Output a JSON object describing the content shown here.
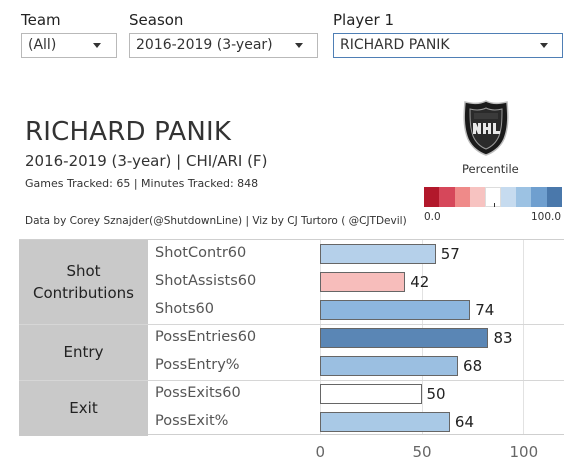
{
  "filters": {
    "team": {
      "label": "Team",
      "value": "(All)"
    },
    "season": {
      "label": "Season",
      "value": "2016-2019 (3-year)"
    },
    "player": {
      "label": "Player 1",
      "value": "RICHARD PANIK"
    }
  },
  "header": {
    "player_name": "RICHARD PANIK",
    "subtitle": "2016-2019 (3-year) | CHI/ARI (F)",
    "tracked": "Games Tracked: 65  | Minutes Tracked: 848",
    "credit": "Data by Corey Sznajder(@ShutdownLine) | Viz by CJ Turtoro ( @CJTDevil)"
  },
  "legend": {
    "title": "Percentile",
    "min_label": "0.0",
    "max_label": "100.0",
    "colors": [
      "#b2182b",
      "#d6475a",
      "#ef8a89",
      "#f7c3c1",
      "#ffffff",
      "#c6dbef",
      "#9cc2e3",
      "#6f9fcf",
      "#4a78ab"
    ],
    "logo_icon": "nhl-shield-logo"
  },
  "chart_data": {
    "type": "bar",
    "orientation": "horizontal",
    "xlim": [
      0,
      100
    ],
    "x_ticks": [
      "0",
      "50",
      "100"
    ],
    "groups": [
      {
        "label": "Shot Contributions",
        "rows": [
          {
            "metric": "ShotContr60",
            "value": 57,
            "color": "#b5d0ea"
          },
          {
            "metric": "ShotAssists60",
            "value": 42,
            "color": "#f7bdbb"
          },
          {
            "metric": "Shots60",
            "value": 74,
            "color": "#8db6de"
          }
        ]
      },
      {
        "label": "Entry",
        "rows": [
          {
            "metric": "PossEntries60",
            "value": 83,
            "color": "#5a86b5"
          },
          {
            "metric": "PossEntry%",
            "value": 68,
            "color": "#9bbfe1"
          }
        ]
      },
      {
        "label": "Exit",
        "rows": [
          {
            "metric": "PossExits60",
            "value": 50,
            "color": "#ffffff"
          },
          {
            "metric": "PossExit%",
            "value": 64,
            "color": "#a9c9e6"
          }
        ]
      }
    ]
  }
}
